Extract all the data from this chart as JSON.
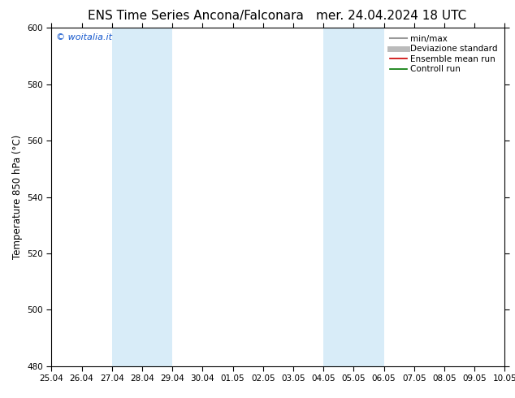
{
  "title_left": "ENS Time Series Ancona/Falconara",
  "title_right": "mer. 24.04.2024 18 UTC",
  "ylabel": "Temperature 850 hPa (°C)",
  "ylim": [
    480,
    600
  ],
  "yticks": [
    480,
    500,
    520,
    540,
    560,
    580,
    600
  ],
  "xlim_start": 0,
  "xlim_end": 15,
  "xtick_labels": [
    "25.04",
    "26.04",
    "27.04",
    "28.04",
    "29.04",
    "30.04",
    "01.05",
    "02.05",
    "03.05",
    "04.05",
    "05.05",
    "06.05",
    "07.05",
    "08.05",
    "09.05",
    "10.05"
  ],
  "xtick_positions": [
    0,
    1,
    2,
    3,
    4,
    5,
    6,
    7,
    8,
    9,
    10,
    11,
    12,
    13,
    14,
    15
  ],
  "weekend_bands": [
    {
      "x_start": 2,
      "x_end": 4
    },
    {
      "x_start": 9,
      "x_end": 11
    }
  ],
  "weekend_color": "#d8ecf8",
  "bg_color": "#ffffff",
  "plot_bg_color": "#ffffff",
  "watermark_text": "© woitalia.it",
  "watermark_color": "#1155cc",
  "legend_items": [
    {
      "label": "min/max",
      "color": "#999999",
      "lw": 1.5,
      "style": "-"
    },
    {
      "label": "Deviazione standard",
      "color": "#bbbbbb",
      "lw": 5,
      "style": "-"
    },
    {
      "label": "Ensemble mean run",
      "color": "#cc0000",
      "lw": 1.2,
      "style": "-"
    },
    {
      "label": "Controll run",
      "color": "#007700",
      "lw": 1.2,
      "style": "-"
    }
  ],
  "tick_label_fontsize": 7.5,
  "axis_label_fontsize": 8.5,
  "title_fontsize": 11,
  "legend_fontsize": 7.5
}
